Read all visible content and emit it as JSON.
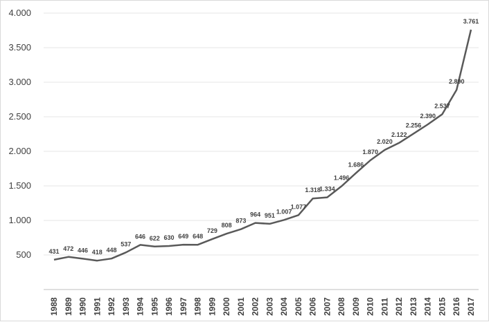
{
  "chart_data": {
    "type": "line",
    "title": "",
    "xlabel": "",
    "ylabel": "",
    "x": [
      "1988",
      "1989",
      "1990",
      "1991",
      "1992",
      "1993",
      "1994",
      "1995",
      "1996",
      "1997",
      "1998",
      "1999",
      "2000",
      "2001",
      "2002",
      "2003",
      "2004",
      "2005",
      "2006",
      "2007",
      "2008",
      "2009",
      "2010",
      "2011",
      "2012",
      "2013",
      "2014",
      "2015",
      "2016",
      "2017"
    ],
    "series": [
      {
        "values": [
          431,
          472,
          446,
          418,
          448,
          537,
          646,
          622,
          630,
          649,
          648,
          729,
          808,
          873,
          964,
          951,
          1007,
          1077,
          1318,
          1334,
          1496,
          1686,
          1870,
          2020,
          2122,
          2256,
          2390,
          2537,
          2890,
          3761
        ],
        "data_labels": [
          "431",
          "472",
          "446",
          "418",
          "448",
          "537",
          "646",
          "622",
          "630",
          "649",
          "648",
          "729",
          "808",
          "873",
          "964",
          "951",
          "1.007",
          "1.077",
          "1.318",
          "1.334",
          "1.496",
          "1.686",
          "1.870",
          "2.020",
          "2.122",
          "2.256",
          "2.390",
          "2.537",
          "2.890",
          "3.761"
        ]
      }
    ],
    "y_ticks": [
      {
        "value": 500,
        "label": "500"
      },
      {
        "value": 1000,
        "label": "1.000"
      },
      {
        "value": 1500,
        "label": "1.500"
      },
      {
        "value": 2000,
        "label": "2.000"
      },
      {
        "value": 2500,
        "label": "2.500"
      },
      {
        "value": 3000,
        "label": "3.000"
      },
      {
        "value": 3500,
        "label": "3.500"
      },
      {
        "value": 4000,
        "label": "4.000"
      }
    ],
    "ylim": [
      0,
      4000
    ],
    "grid": true,
    "legend": "none",
    "line_color": "#595959"
  }
}
